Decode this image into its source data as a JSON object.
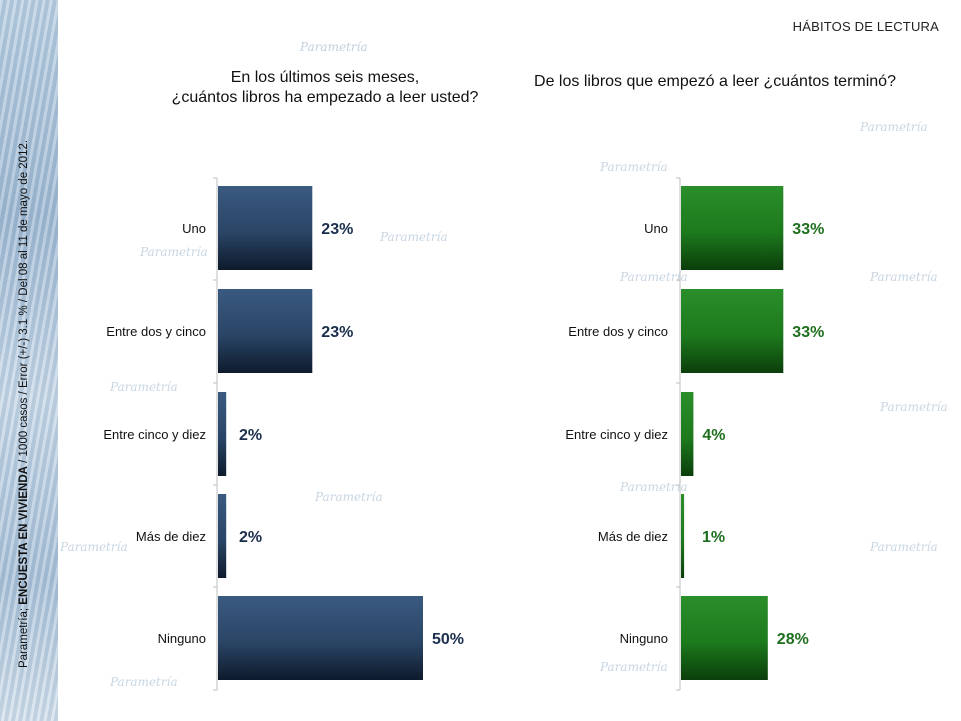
{
  "header": {
    "title": "HÁBITOS DE LECTURA"
  },
  "sidebar": {
    "prefix": "Parametría; ",
    "bold": "ENCUESTA EN VIVIENDA",
    "suffix": " / 1000 casos / Error (+/-) 3.1 % / Del 08 al 11 de mayo de 2012."
  },
  "watermark": {
    "text": "Parametría"
  },
  "colors": {
    "left_bar": "#2c4766",
    "left_label": "#1b2f4d",
    "right_bar": "#1f7a1f",
    "right_label": "#1e6f1e"
  },
  "chart_data": [
    {
      "type": "bar",
      "orientation": "horizontal",
      "title": "En los últimos seis meses,\n¿cuántos libros ha empezado a leer usted?",
      "categories": [
        "Uno",
        "Entre dos y cinco",
        "Entre cinco y diez",
        "Más de diez",
        "Ninguno"
      ],
      "values": [
        23,
        23,
        2,
        2,
        50
      ],
      "value_labels": [
        "23%",
        "23%",
        "2%",
        "2%",
        "50%"
      ],
      "unit": "%"
    },
    {
      "type": "bar",
      "orientation": "horizontal",
      "title": "De los libros que empezó a leer ¿cuántos terminó?",
      "categories": [
        "Uno",
        "Entre dos y cinco",
        "Entre cinco y diez",
        "Más de diez",
        "Ninguno"
      ],
      "values": [
        33,
        33,
        4,
        1,
        28
      ],
      "value_labels": [
        "33%",
        "33%",
        "4%",
        "1%",
        "28%"
      ],
      "unit": "%"
    }
  ]
}
